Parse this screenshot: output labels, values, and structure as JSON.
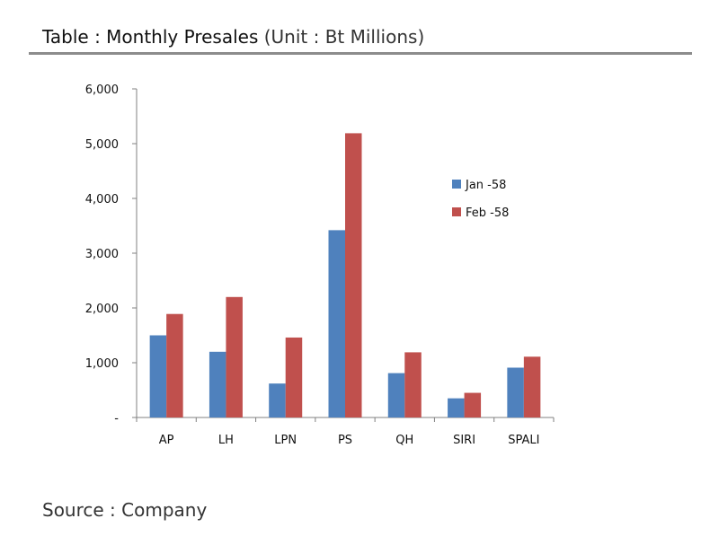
{
  "header": {
    "title_main": "Table : Monthly Presales",
    "title_unit": "(Unit : Bt Millions)"
  },
  "footer": {
    "source": "Source : Company"
  },
  "colors": {
    "jan": "#4f81bd",
    "feb": "#c0504d",
    "axis": "#808080",
    "rule": "#8c8c8c"
  },
  "chart_data": {
    "type": "bar",
    "categories": [
      "AP",
      "LH",
      "LPN",
      "PS",
      "QH",
      "SIRI",
      "SPALI"
    ],
    "series": [
      {
        "name": "Jan -58",
        "values": [
          1500,
          1200,
          620,
          3420,
          810,
          350,
          910
        ]
      },
      {
        "name": "Feb -58",
        "values": [
          1890,
          2200,
          1460,
          5190,
          1190,
          450,
          1110
        ]
      }
    ],
    "ylim": [
      0,
      6000
    ],
    "yticks": [
      0,
      1000,
      2000,
      3000,
      4000,
      5000,
      6000
    ],
    "ytick_labels": [
      "-",
      "1,000",
      "2,000",
      "3,000",
      "4,000",
      "5,000",
      "6,000"
    ],
    "legend_position": "right",
    "grid": false,
    "title": "",
    "xlabel": "",
    "ylabel": ""
  }
}
